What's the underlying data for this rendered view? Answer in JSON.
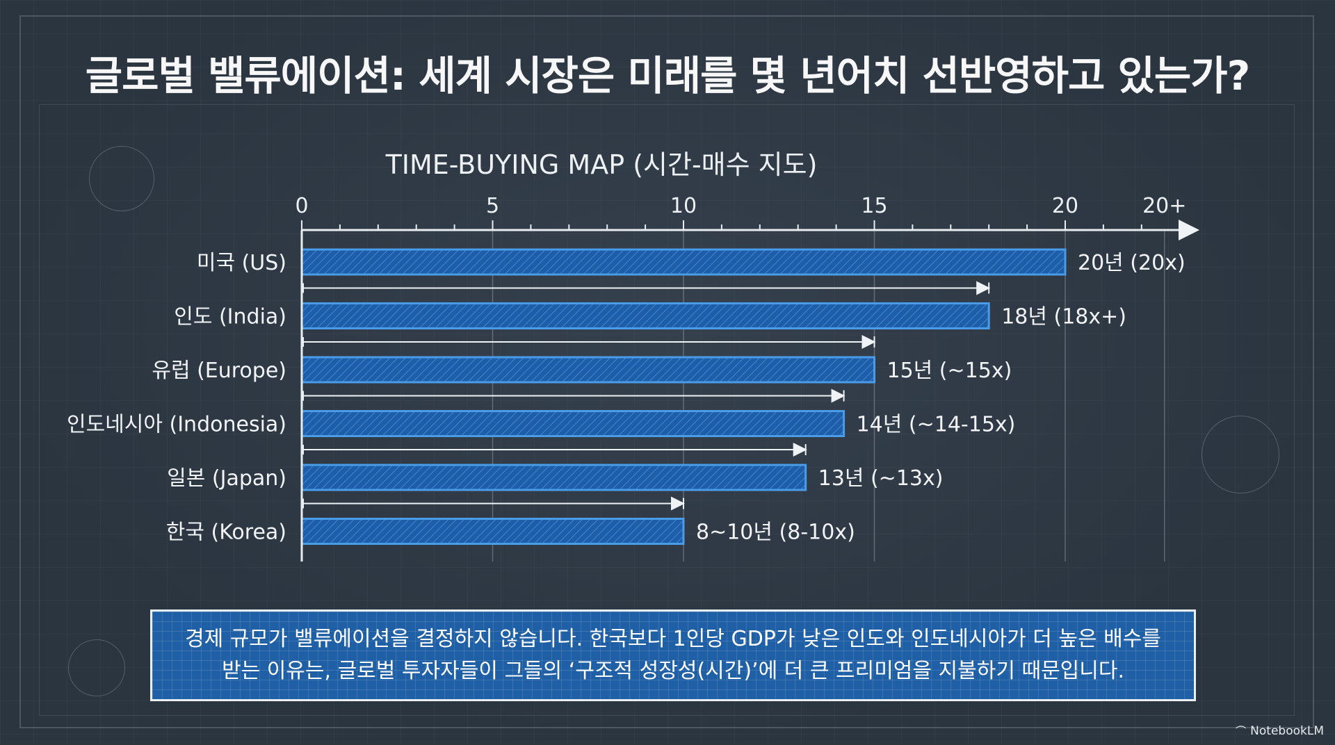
{
  "title": "글로벌 밸류에이션: 세계 시장은 미래를 몇 년어치 선반영하고 있는가?",
  "chart_data": {
    "type": "bar",
    "orientation": "horizontal",
    "title": "TIME-BUYING MAP (시간-매수 지도)",
    "xlim": [
      0,
      23
    ],
    "x_ticks": [
      "0",
      "5",
      "10",
      "15",
      "20",
      "20+"
    ],
    "x_tick_values": [
      0,
      5,
      10,
      15,
      20,
      22.6
    ],
    "grid": true,
    "categories": [
      "미국 (US)",
      "인도 (India)",
      "유럽 (Europe)",
      "인도네시아 (Indonesia)",
      "일본 (Japan)",
      "한국 (Korea)"
    ],
    "values": [
      20,
      18,
      15,
      14.2,
      13.2,
      10
    ],
    "data_labels": [
      "20년 (20x)",
      "18년 (18x+)",
      "15년 (~15x)",
      "14년 (~14-15x)",
      "13년 (~13x)",
      "8~10년 (8-10x)"
    ],
    "colors": {
      "bar_fill": "#1e63b0",
      "bar_stroke": "#4a9be8",
      "axis": "#e8ecf0"
    }
  },
  "caption": "경제 규모가 밸류에이션을 결정하지 않습니다. 한국보다 1인당 GDP가 낮은 인도와 인도네시아가 더 높은 배수를 받는 이유는, 글로벌 투자자들이 그들의 ‘구조적 성장성(시간)’에 더 큰 프리미엄을 지불하기 때문입니다.",
  "brand": "NotebookLM",
  "brand_icon": "notebooklm-logo-icon"
}
